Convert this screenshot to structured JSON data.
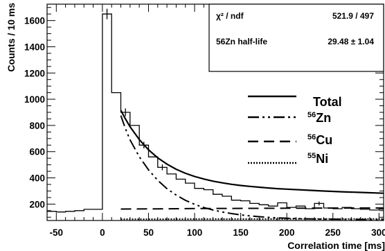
{
  "chart_data": {
    "type": "line",
    "title": "",
    "xlabel": "Correlation time [ms]",
    "ylabel": "Counts / 10 ms",
    "xlim": [
      -60,
      305
    ],
    "ylim": [
      75,
      1725
    ],
    "xticks": [
      -50,
      0,
      50,
      100,
      150,
      200,
      250,
      300
    ],
    "yticks": [
      200,
      400,
      600,
      800,
      1000,
      1200,
      1400,
      1600
    ],
    "grid": false,
    "stats": {
      "rows": [
        {
          "label": "χ² / ndf",
          "value": "521.9 / 497"
        },
        {
          "label": "56Zn half-life",
          "value": "29.48 ± 1.04"
        }
      ]
    },
    "legend": {
      "placement": "right",
      "entries": [
        {
          "style": "solid",
          "sup": "",
          "text": "Total"
        },
        {
          "style": "dashdot",
          "sup": "56",
          "text": "Zn"
        },
        {
          "style": "dashed",
          "sup": "56",
          "text": "Cu"
        },
        {
          "style": "dotted",
          "sup": "55",
          "text": "Ni"
        }
      ]
    },
    "histogram": {
      "bin_width": 10,
      "bins": [
        {
          "x": -60,
          "y": 145
        },
        {
          "x": -50,
          "y": 140
        },
        {
          "x": -40,
          "y": 145
        },
        {
          "x": -30,
          "y": 150
        },
        {
          "x": -20,
          "y": 160
        },
        {
          "x": -10,
          "y": 160
        },
        {
          "x": 0,
          "y": 1650
        },
        {
          "x": 10,
          "y": 1050
        },
        {
          "x": 20,
          "y": 900
        },
        {
          "x": 30,
          "y": 800
        },
        {
          "x": 40,
          "y": 650
        },
        {
          "x": 50,
          "y": 560
        },
        {
          "x": 60,
          "y": 480
        },
        {
          "x": 70,
          "y": 430
        },
        {
          "x": 80,
          "y": 390
        },
        {
          "x": 90,
          "y": 360
        },
        {
          "x": 100,
          "y": 320
        },
        {
          "x": 110,
          "y": 310
        },
        {
          "x": 120,
          "y": 275
        },
        {
          "x": 130,
          "y": 260
        },
        {
          "x": 140,
          "y": 230
        },
        {
          "x": 150,
          "y": 225
        },
        {
          "x": 160,
          "y": 205
        },
        {
          "x": 170,
          "y": 195
        },
        {
          "x": 180,
          "y": 185
        },
        {
          "x": 190,
          "y": 210
        },
        {
          "x": 200,
          "y": 175
        },
        {
          "x": 210,
          "y": 185
        },
        {
          "x": 220,
          "y": 165
        },
        {
          "x": 230,
          "y": 205
        },
        {
          "x": 240,
          "y": 170
        },
        {
          "x": 250,
          "y": 165
        },
        {
          "x": 260,
          "y": 175
        },
        {
          "x": 270,
          "y": 165
        },
        {
          "x": 280,
          "y": 160
        },
        {
          "x": 290,
          "y": 155
        },
        {
          "x": 300,
          "y": 160
        }
      ]
    },
    "curves": [
      {
        "name": "Total",
        "style": "solid",
        "x": [
          20,
          25,
          30,
          40,
          50,
          60,
          70,
          80,
          90,
          100,
          110,
          120,
          130,
          140,
          150,
          160,
          170,
          180,
          190,
          200,
          220,
          240,
          260,
          280,
          305
        ],
        "y": [
          915,
          849,
          790,
          692,
          614,
          553,
          505,
          466,
          435,
          411,
          391,
          375,
          362,
          351,
          342,
          335,
          329,
          323,
          318,
          314,
          307,
          300,
          294,
          289,
          283
        ]
      },
      {
        "name": "56Zn",
        "style": "dashdot",
        "x": [
          20,
          25,
          30,
          40,
          50,
          60,
          70,
          80,
          90,
          100,
          110,
          120,
          130,
          140,
          150,
          160,
          170,
          180,
          190,
          200,
          220,
          240,
          260,
          280,
          305
        ],
        "y": [
          875,
          774,
          690,
          561,
          461,
          381,
          318,
          269,
          229,
          198,
          174,
          155,
          140,
          128,
          118,
          110,
          104,
          99,
          95,
          92,
          88,
          85,
          84,
          83,
          82
        ]
      },
      {
        "name": "56Cu",
        "style": "dashed",
        "x": [
          20,
          60,
          100,
          140,
          180,
          220,
          260,
          305
        ],
        "y": [
          162,
          164,
          166,
          167,
          168,
          169,
          170,
          170
        ]
      },
      {
        "name": "55Ni",
        "style": "dotted",
        "x": [
          20,
          60,
          100,
          140,
          180,
          220,
          260,
          305
        ],
        "y": [
          85,
          85,
          86,
          86,
          86,
          87,
          87,
          87
        ]
      }
    ],
    "error_bars": [
      {
        "x": 5,
        "y": 1650,
        "err": 40
      },
      {
        "x": 25,
        "y": 900,
        "err": 30
      },
      {
        "x": 45,
        "y": 650,
        "err": 25
      },
      {
        "x": 65,
        "y": 480,
        "err": 22
      },
      {
        "x": 235,
        "y": 205,
        "err": 15
      }
    ]
  }
}
